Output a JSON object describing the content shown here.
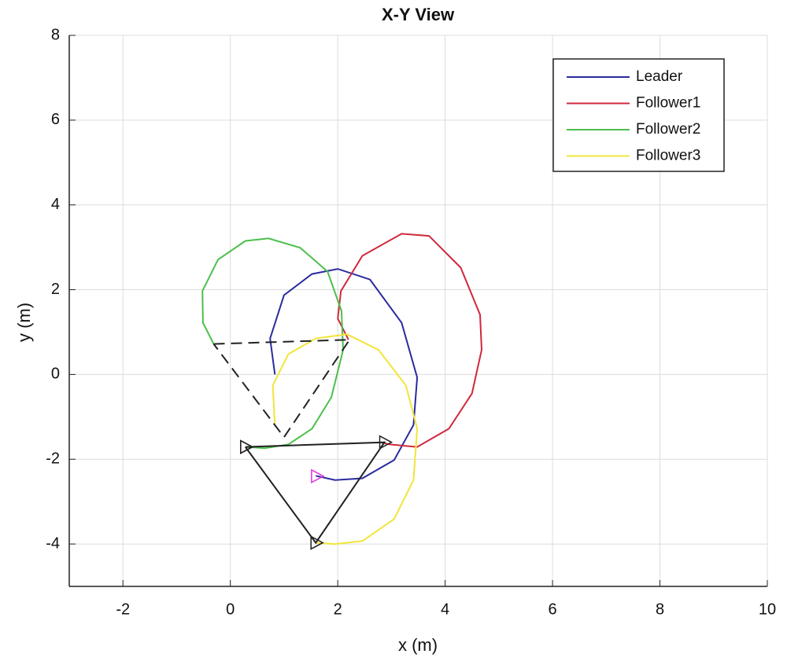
{
  "chart_data": {
    "type": "line",
    "title": "X-Y View",
    "xlabel": "x (m)",
    "ylabel": "y (m)",
    "xlim": [
      -3,
      10
    ],
    "xticks": [
      -2,
      0,
      2,
      4,
      6,
      8,
      10
    ],
    "ylim": [
      -5,
      8
    ],
    "yticks": [
      -4,
      -2,
      0,
      2,
      4,
      6,
      8
    ],
    "grid": true,
    "legend": "northeast",
    "series": [
      {
        "name": "Leader",
        "color": "#2b2b9e",
        "x": [
          0.83,
          0.74,
          1.0,
          1.52,
          2.0,
          2.6,
          3.19,
          3.48,
          3.41,
          3.05,
          2.46,
          1.95,
          1.59
        ],
        "values": [
          0,
          0.85,
          1.87,
          2.37,
          2.49,
          2.24,
          1.22,
          -0.07,
          -1.19,
          -2.02,
          -2.45,
          -2.49,
          -2.39
        ]
      },
      {
        "name": "Follower1",
        "color": "#d0283c",
        "x": [
          2.2,
          2.0,
          2.06,
          2.46,
          3.19,
          3.7,
          4.29,
          4.65,
          4.68,
          4.5,
          4.07,
          3.48,
          2.97,
          2.82
        ],
        "values": [
          0.82,
          1.32,
          1.97,
          2.8,
          3.32,
          3.27,
          2.52,
          1.41,
          0.58,
          -0.45,
          -1.28,
          -1.71,
          -1.65,
          -1.61
        ]
      },
      {
        "name": "Follower2",
        "color": "#4cbf4c",
        "x": [
          -0.31,
          -0.51,
          -0.52,
          -0.23,
          0.28,
          0.71,
          1.3,
          1.81,
          2.07,
          2.1,
          1.88,
          1.52,
          1.08,
          0.64,
          0.31
        ],
        "values": [
          0.72,
          1.22,
          1.97,
          2.71,
          3.15,
          3.21,
          2.99,
          2.43,
          1.5,
          0.58,
          -0.54,
          -1.28,
          -1.65,
          -1.74,
          -1.71
        ]
      },
      {
        "name": "Follower3",
        "color": "#f2e53a",
        "x": [
          0.83,
          0.79,
          1.08,
          1.59,
          2.17,
          2.76,
          3.27,
          3.48,
          3.41,
          3.05,
          2.46,
          1.95,
          1.59
        ],
        "values": [
          -1.19,
          -0.26,
          0.48,
          0.85,
          0.95,
          0.58,
          -0.26,
          -1.28,
          -2.49,
          -3.41,
          -3.93,
          -4.0,
          -3.97
        ]
      },
      {
        "color": "#222222",
        "dash": true,
        "x": [
          -0.31,
          2.22,
          1.0,
          -0.31
        ],
        "values": [
          0.72,
          0.82,
          -1.48,
          0.72
        ]
      },
      {
        "color": "#222222",
        "marker": "triangle",
        "x": [
          0.28,
          2.87,
          1.59,
          0.28
        ],
        "values": [
          -1.71,
          -1.6,
          -3.97,
          -1.71
        ]
      },
      {
        "color": "#dd33dd",
        "marker": "triangle",
        "x": [
          1.6
        ],
        "values": [
          -2.4
        ]
      }
    ]
  }
}
